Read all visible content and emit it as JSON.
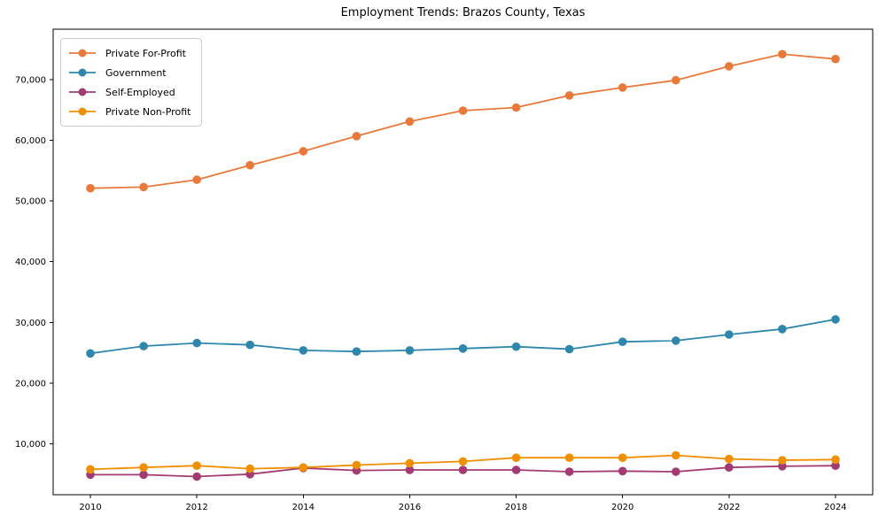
{
  "chart_data": {
    "type": "line",
    "title": "Employment Trends: Brazos County, Texas",
    "xlabel": "",
    "ylabel": "",
    "grid": false,
    "legend_position": "upper-left",
    "marker": "circle",
    "xlim": [
      2009.3,
      2024.7
    ],
    "ylim": [
      1610,
      78310
    ],
    "x": [
      2010,
      2011,
      2012,
      2013,
      2014,
      2015,
      2016,
      2017,
      2018,
      2019,
      2020,
      2021,
      2022,
      2023,
      2024
    ],
    "xticks": [
      2010,
      2012,
      2014,
      2016,
      2018,
      2020,
      2022,
      2024
    ],
    "xtick_labels": [
      "2010",
      "2012",
      "2014",
      "2016",
      "2018",
      "2020",
      "2022",
      "2024"
    ],
    "ytick_values": [
      10000,
      20000,
      30000,
      40000,
      50000,
      60000,
      70000
    ],
    "ytick_labels": [
      "10,000",
      "20,000",
      "30,000",
      "40,000",
      "50,000",
      "60,000",
      "70,000"
    ],
    "series": [
      {
        "name": "Private For-Profit",
        "color": "#e8793b",
        "values": [
          52100,
          52300,
          53500,
          55900,
          58200,
          60700,
          63100,
          64900,
          65400,
          67400,
          68700,
          69900,
          72200,
          74200,
          73400
        ]
      },
      {
        "name": "Government",
        "color": "#2e86ab",
        "values": [
          24900,
          26100,
          26600,
          26300,
          25400,
          25200,
          25400,
          25700,
          26000,
          25600,
          26800,
          27000,
          28000,
          28900,
          30500
        ]
      },
      {
        "name": "Self-Employed",
        "color": "#a23b72",
        "values": [
          4900,
          4900,
          4600,
          5000,
          6000,
          5600,
          5700,
          5700,
          5700,
          5400,
          5500,
          5400,
          6100,
          6300,
          6400
        ]
      },
      {
        "name": "Private Non-Profit",
        "color": "#f18f01",
        "values": [
          5800,
          6100,
          6400,
          5900,
          6100,
          6500,
          6800,
          7100,
          7700,
          7700,
          7700,
          8100,
          7500,
          7300,
          7400
        ]
      }
    ]
  }
}
